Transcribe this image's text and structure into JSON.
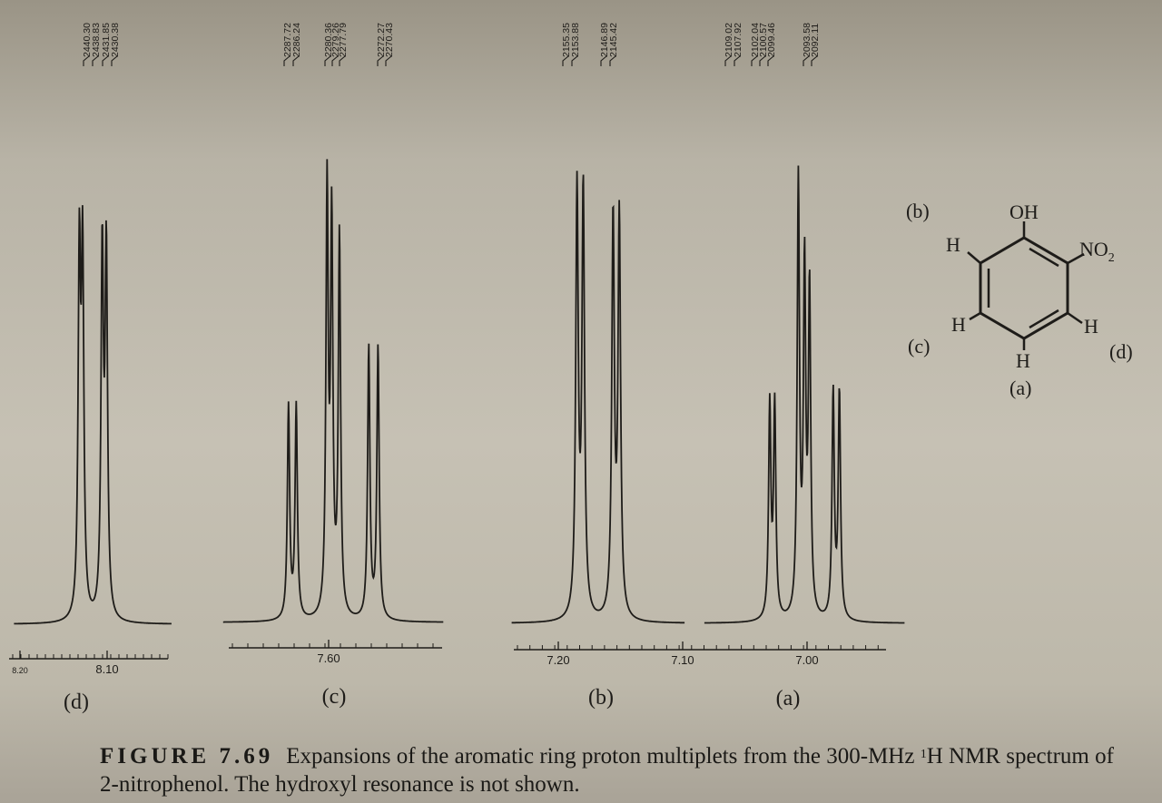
{
  "panels": [
    {
      "id": "d",
      "label": "(d)",
      "peak_labels": [
        "2440.30",
        "2438.83",
        "2431.85",
        "2430.38"
      ],
      "axis_ticks": [
        {
          "label": "8.20",
          "ppm": 8.2
        },
        {
          "label": "8.10",
          "ppm": 8.1
        }
      ],
      "peaks_ppm": [
        8.134,
        8.13,
        8.106,
        8.101
      ]
    },
    {
      "id": "c",
      "label": "(c)",
      "peak_labels": [
        "2287.72",
        "2286.24",
        "2280.36",
        "2279.26",
        "2277.79",
        "2272.27",
        "2270.43"
      ],
      "axis_ticks": [
        {
          "label": "7.60",
          "ppm": 7.6
        }
      ],
      "peaks_ppm": [
        7.626,
        7.621,
        7.601,
        7.598,
        7.593,
        7.574,
        7.568
      ]
    },
    {
      "id": "b",
      "label": "(b)",
      "peak_labels": [
        "2155.35",
        "2153.88",
        "2146.89",
        "2145.42"
      ],
      "axis_ticks": [
        {
          "label": "7.20",
          "ppm": 7.2
        },
        {
          "label": "7.10",
          "ppm": 7.1
        }
      ],
      "peaks_ppm": [
        7.185,
        7.18,
        7.156,
        7.151
      ]
    },
    {
      "id": "a",
      "label": "(a)",
      "peak_labels": [
        "2109.02",
        "2107.92",
        "2102.04",
        "2100.57",
        "2099.46",
        "2093.58",
        "2092.11"
      ],
      "axis_ticks": [
        {
          "label": "7.00",
          "ppm": 7.0
        }
      ],
      "peaks_ppm": [
        7.03,
        7.026,
        7.007,
        7.002,
        6.998,
        6.979,
        6.974
      ]
    }
  ],
  "structure": {
    "name": "2-nitrophenol",
    "substituent_oh": "OH",
    "substituent_no2": "NO",
    "substituent_no2_sub": "2",
    "hydrogen": "H",
    "position_labels": {
      "a": "(a)",
      "b": "(b)",
      "c": "(c)",
      "d": "(d)"
    }
  },
  "caption": {
    "figure_label": "FIGURE 7.69",
    "text_before_sup": "Expansions of the aromatic ring proton multiplets from the 300-MHz ",
    "superscript": "1",
    "text_after_sup": "H NMR spectrum of 2-nitrophenol. The hydroxyl resonance is not shown."
  }
}
